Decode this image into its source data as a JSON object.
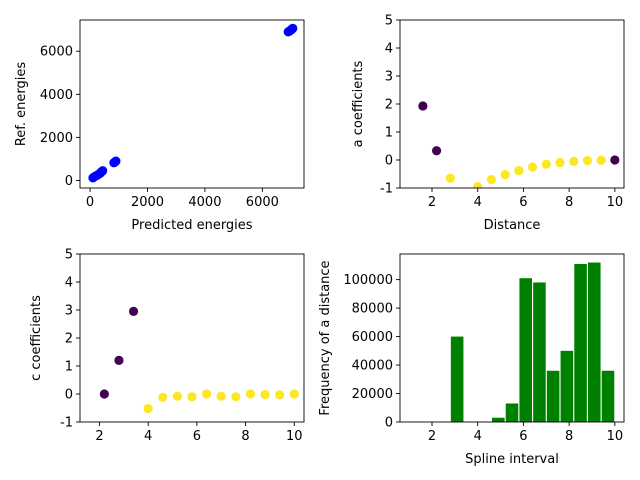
{
  "chart_data": [
    {
      "type": "scatter",
      "xlabel": "Predicted energies",
      "ylabel": "Ref. energies",
      "xlim": [
        -350,
        7450
      ],
      "ylim": [
        -350,
        7450
      ],
      "xticks": [
        0,
        2000,
        4000,
        6000
      ],
      "yticks": [
        0,
        2000,
        4000,
        6000
      ],
      "color": "#0000ff",
      "x": [
        100,
        150,
        200,
        250,
        300,
        350,
        380,
        420,
        440,
        830,
        860,
        880,
        900,
        6900,
        6930,
        6960,
        6990,
        7010,
        7040,
        7060
      ],
      "y": [
        120,
        170,
        210,
        240,
        290,
        330,
        380,
        420,
        450,
        820,
        850,
        870,
        900,
        6900,
        6930,
        6950,
        6980,
        7000,
        7040,
        7060
      ]
    },
    {
      "type": "scatter",
      "xlabel": "Distance",
      "ylabel": "a coefficients",
      "xlim": [
        0.6,
        10.4
      ],
      "ylim": [
        -1,
        5
      ],
      "xticks": [
        2,
        4,
        6,
        8,
        10
      ],
      "yticks": [
        -1,
        0,
        1,
        2,
        3,
        4,
        5
      ],
      "colors": {
        "low": "#440154",
        "high": "#fde725"
      },
      "x": [
        1.6,
        2.2,
        2.8,
        4.0,
        4.6,
        5.2,
        5.8,
        6.4,
        7.0,
        7.6,
        8.2,
        8.8,
        9.4,
        10.0
      ],
      "y": [
        1.93,
        0.33,
        -0.65,
        -0.95,
        -0.7,
        -0.52,
        -0.38,
        -0.25,
        -0.15,
        -0.09,
        -0.05,
        -0.02,
        -0.01,
        0.0
      ],
      "class": [
        0,
        0,
        1,
        1,
        1,
        1,
        1,
        1,
        1,
        1,
        1,
        1,
        1,
        0
      ]
    },
    {
      "type": "scatter",
      "xlabel": "",
      "ylabel": "c coefficients",
      "xlim": [
        1.2,
        10.4
      ],
      "ylim": [
        -1,
        5
      ],
      "xticks": [
        2,
        4,
        6,
        8,
        10
      ],
      "yticks": [
        -1,
        0,
        1,
        2,
        3,
        4,
        5
      ],
      "colors": {
        "low": "#440154",
        "high": "#fde725"
      },
      "x": [
        2.2,
        2.8,
        3.4,
        4.0,
        4.6,
        5.2,
        5.8,
        6.4,
        7.0,
        7.6,
        8.2,
        8.8,
        9.4,
        10.0
      ],
      "y": [
        0.0,
        1.2,
        2.95,
        -0.52,
        -0.12,
        -0.08,
        -0.1,
        0.0,
        -0.08,
        -0.1,
        0.0,
        -0.02,
        -0.03,
        0.0
      ],
      "class": [
        0,
        0,
        0,
        1,
        1,
        1,
        1,
        1,
        1,
        1,
        1,
        1,
        1,
        1
      ]
    },
    {
      "type": "bar",
      "xlabel": "Spline interval",
      "ylabel": "Frequency of a distance",
      "xlim": [
        0.6,
        10.4
      ],
      "ylim": [
        0,
        118000
      ],
      "xticks": [
        2,
        4,
        6,
        8,
        10
      ],
      "yticks": [
        0,
        20000,
        40000,
        60000,
        80000,
        100000
      ],
      "color": "#008000",
      "x": [
        3.1,
        4.9,
        5.5,
        6.1,
        6.7,
        7.3,
        7.9,
        8.5,
        9.1,
        9.7
      ],
      "values": [
        60000,
        3000,
        13000,
        101000,
        98000,
        36000,
        50000,
        111000,
        112000,
        36000
      ],
      "bar_width": 0.55
    }
  ]
}
